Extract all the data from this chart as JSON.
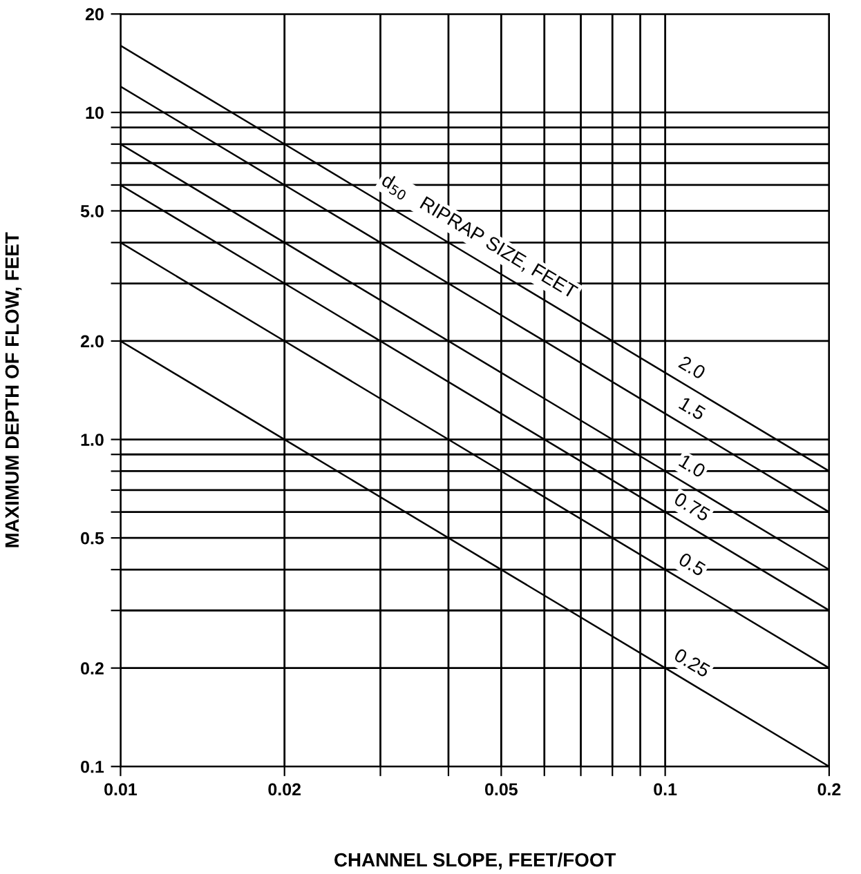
{
  "chart_data": {
    "type": "line",
    "xlabel": "CHANNEL SLOPE, FEET/FOOT",
    "ylabel": "MAXIMUM DEPTH OF FLOW, FEET",
    "log": "xy",
    "grid": true,
    "marker": "none",
    "line_style": "solid",
    "xlim": [
      0.01,
      0.2
    ],
    "ylim": [
      0.1,
      20
    ],
    "xticks": [
      {
        "value": 0.01,
        "label": "0.01"
      },
      {
        "value": 0.02,
        "label": "0.02"
      },
      {
        "value": 0.03,
        "label": null
      },
      {
        "value": 0.04,
        "label": null
      },
      {
        "value": 0.05,
        "label": "0.05"
      },
      {
        "value": 0.06,
        "label": null
      },
      {
        "value": 0.07,
        "label": null
      },
      {
        "value": 0.08,
        "label": null
      },
      {
        "value": 0.09,
        "label": null
      },
      {
        "value": 0.1,
        "label": "0.1"
      },
      {
        "value": 0.2,
        "label": "0.2"
      }
    ],
    "yticks": [
      {
        "value": 0.1,
        "label": "0.1"
      },
      {
        "value": 0.2,
        "label": "0.2"
      },
      {
        "value": 0.3,
        "label": null
      },
      {
        "value": 0.4,
        "label": null
      },
      {
        "value": 0.5,
        "label": "0.5"
      },
      {
        "value": 0.6,
        "label": null
      },
      {
        "value": 0.7,
        "label": null
      },
      {
        "value": 0.8,
        "label": null
      },
      {
        "value": 0.9,
        "label": null
      },
      {
        "value": 1,
        "label": "1.0"
      },
      {
        "value": 2,
        "label": "2.0"
      },
      {
        "value": 3,
        "label": null
      },
      {
        "value": 4,
        "label": null
      },
      {
        "value": 5,
        "label": "5.0"
      },
      {
        "value": 6,
        "label": null
      },
      {
        "value": 7,
        "label": null
      },
      {
        "value": 8,
        "label": null
      },
      {
        "value": 9,
        "label": null
      },
      {
        "value": 10,
        "label": "10"
      },
      {
        "value": 20,
        "label": "20"
      }
    ],
    "series": [
      {
        "name": "2.0",
        "color": "#000000",
        "x": [
          0.01,
          0.02,
          0.05,
          0.1,
          0.2
        ],
        "values": [
          16,
          8,
          3.2,
          1.6,
          0.8
        ]
      },
      {
        "name": "1.5",
        "color": "#000000",
        "x": [
          0.01,
          0.02,
          0.05,
          0.1,
          0.2
        ],
        "values": [
          12,
          6,
          2.4,
          1.2,
          0.6
        ]
      },
      {
        "name": "1.0",
        "color": "#000000",
        "x": [
          0.01,
          0.02,
          0.05,
          0.1,
          0.2
        ],
        "values": [
          8,
          4,
          1.6,
          0.8,
          0.4
        ]
      },
      {
        "name": "0.75",
        "color": "#000000",
        "x": [
          0.01,
          0.02,
          0.05,
          0.1,
          0.2
        ],
        "values": [
          6,
          3,
          1.2,
          0.6,
          0.3
        ]
      },
      {
        "name": "0.5",
        "color": "#000000",
        "x": [
          0.01,
          0.02,
          0.05,
          0.1,
          0.2
        ],
        "values": [
          4,
          2,
          0.8,
          0.4,
          0.2
        ]
      },
      {
        "name": "0.25",
        "color": "#000000",
        "x": [
          0.01,
          0.02,
          0.05,
          0.1,
          0.2
        ],
        "values": [
          2,
          1,
          0.4,
          0.2,
          0.1
        ]
      }
    ],
    "annotations": [
      "d$_{50}$   RIPRAP SIZE, FEET"
    ]
  }
}
